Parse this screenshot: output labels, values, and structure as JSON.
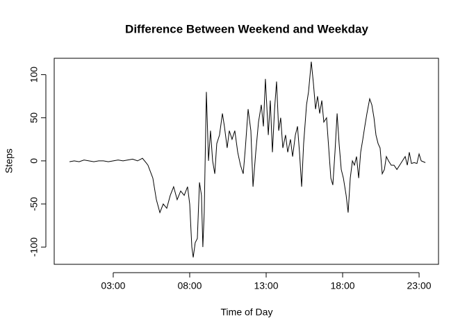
{
  "chart_data": {
    "type": "line",
    "title": "Difference Between Weekend and Weekday",
    "x_label": "Time of Day",
    "y_label": "Steps",
    "x": [
      0.14,
      0.45,
      0.77,
      1.09,
      1.41,
      1.73,
      2.05,
      2.36,
      2.68,
      3.0,
      3.32,
      3.64,
      3.95,
      4.27,
      4.59,
      4.91,
      5.14,
      5.27,
      5.59,
      5.82,
      6.05,
      6.27,
      6.5,
      6.73,
      6.95,
      7.18,
      7.41,
      7.64,
      7.86,
      8.0,
      8.14,
      8.23,
      8.36,
      8.5,
      8.64,
      8.77,
      8.86,
      8.95,
      9.09,
      9.23,
      9.36,
      9.5,
      9.64,
      9.77,
      9.95,
      10.14,
      10.27,
      10.45,
      10.59,
      10.77,
      10.95,
      11.14,
      11.32,
      11.5,
      11.64,
      11.82,
      12.0,
      12.14,
      12.32,
      12.5,
      12.68,
      12.82,
      12.95,
      13.14,
      13.27,
      13.41,
      13.55,
      13.68,
      13.82,
      13.95,
      14.09,
      14.27,
      14.41,
      14.59,
      14.73,
      14.91,
      15.05,
      15.18,
      15.32,
      15.45,
      15.64,
      15.77,
      15.95,
      16.09,
      16.23,
      16.36,
      16.5,
      16.64,
      16.77,
      16.95,
      17.09,
      17.23,
      17.36,
      17.5,
      17.64,
      17.77,
      17.91,
      18.05,
      18.23,
      18.36,
      18.5,
      18.64,
      18.77,
      18.91,
      19.05,
      19.18,
      19.32,
      19.45,
      19.59,
      19.77,
      19.91,
      20.05,
      20.18,
      20.32,
      20.45,
      20.59,
      20.73,
      20.86,
      21.0,
      21.18,
      21.36,
      21.55,
      21.73,
      21.91,
      22.09,
      22.23,
      22.36,
      22.5,
      22.68,
      22.86,
      23.0,
      23.14,
      23.41
    ],
    "series": [
      {
        "color": "#000000",
        "values": [
          -1,
          0,
          -1,
          1,
          0,
          -1,
          0,
          0,
          -1,
          0,
          1,
          0,
          1,
          2,
          0,
          3,
          -2,
          -5,
          -20,
          -45,
          -60,
          -50,
          -55,
          -40,
          -30,
          -45,
          -35,
          -40,
          -30,
          -50,
          -100,
          -112,
          -95,
          -90,
          -25,
          -40,
          -100,
          -60,
          80,
          0,
          35,
          0,
          -15,
          20,
          30,
          55,
          40,
          15,
          35,
          25,
          35,
          10,
          -5,
          -15,
          15,
          60,
          35,
          -30,
          10,
          45,
          65,
          40,
          95,
          30,
          70,
          10,
          60,
          92,
          35,
          50,
          15,
          30,
          10,
          25,
          5,
          30,
          40,
          10,
          -30,
          20,
          65,
          80,
          115,
          90,
          60,
          75,
          55,
          70,
          45,
          50,
          15,
          -20,
          -28,
          10,
          55,
          20,
          -10,
          -20,
          -40,
          -60,
          -20,
          0,
          -5,
          5,
          -20,
          10,
          25,
          40,
          55,
          72,
          65,
          50,
          30,
          20,
          15,
          -15,
          -10,
          5,
          0,
          -5,
          -5,
          -10,
          -5,
          0,
          5,
          -5,
          10,
          -3,
          -2,
          -3,
          8,
          0,
          -2
        ]
      }
    ],
    "xlim": [
      -0.86,
      24.27
    ],
    "xticks": [
      {
        "value": 3,
        "label": "03:00"
      },
      {
        "value": 8,
        "label": "08:00"
      },
      {
        "value": 13,
        "label": "13:00"
      },
      {
        "value": 18,
        "label": "18:00"
      },
      {
        "value": 23,
        "label": "23:00"
      }
    ],
    "ylim": [
      -120,
      119
    ],
    "yticks": [
      -100,
      -50,
      0,
      50,
      100
    ]
  }
}
